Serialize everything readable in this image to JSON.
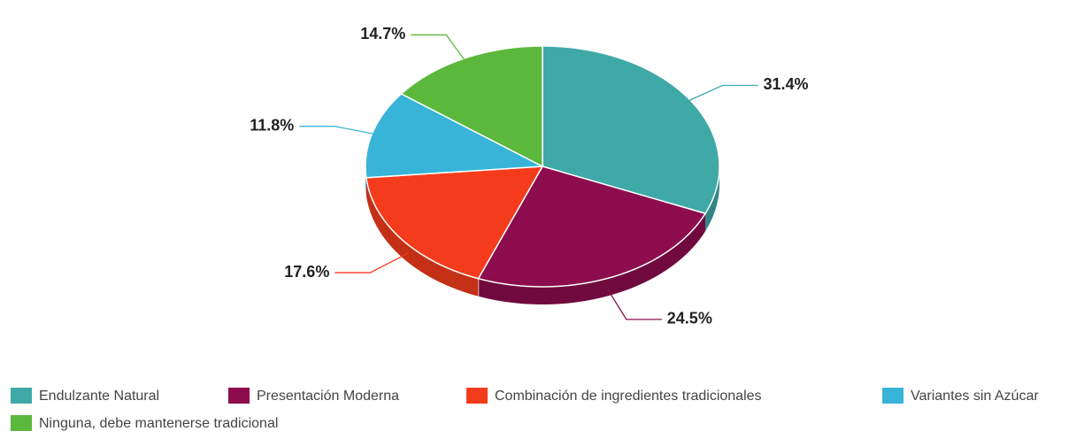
{
  "chart_data": {
    "type": "pie",
    "categories": [
      "Endulzante Natural",
      "Presentación Moderna",
      "Combinación de ingredientes tradicionales",
      "Variantes sin Azúcar",
      "Ninguna, debe mantenerse tradicional"
    ],
    "values": [
      31.4,
      24.5,
      17.6,
      11.8,
      14.7
    ],
    "value_labels": [
      "31.4%",
      "24.5%",
      "17.6%",
      "11.8%",
      "14.7%"
    ],
    "colors": [
      "#3fa9a7",
      "#8c0c4e",
      "#f43c1c",
      "#37b4d8",
      "#5cb83c"
    ],
    "legend": "bottom"
  }
}
